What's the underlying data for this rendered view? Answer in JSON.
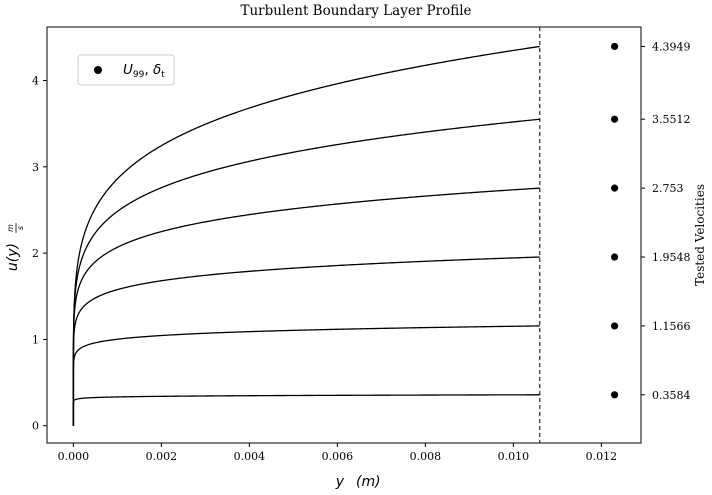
{
  "chart_data": {
    "type": "line",
    "title": "Turbulent Boundary Layer Profile",
    "xlabel": "y",
    "xlabel_unit": "(m)",
    "ylabel": "u(y)",
    "ylabel_unit_num": "m",
    "ylabel_unit_den": "s",
    "right_axis_label": "Tested Velocities",
    "xlim": [
      -0.0006,
      0.0129
    ],
    "ylim": [
      -0.2,
      4.62
    ],
    "x_ticks": [
      0.0,
      0.002,
      0.004,
      0.006,
      0.008,
      0.01,
      0.012
    ],
    "x_tick_labels": [
      "0.000",
      "0.002",
      "0.004",
      "0.006",
      "0.008",
      "0.010",
      "0.012"
    ],
    "y_ticks": [
      0,
      1,
      2,
      3,
      4
    ],
    "y_tick_labels": [
      "0",
      "1",
      "2",
      "3",
      "4"
    ],
    "right_ticks": [
      4.3949,
      3.5512,
      2.753,
      1.9548,
      1.1566,
      0.3584
    ],
    "right_tick_labels": [
      "4.3949",
      "3.5512",
      "2.753",
      "1.9548",
      "1.1566",
      "0.3584"
    ],
    "boundary_layer_thickness": 0.0106,
    "line_color": "#000000",
    "grid": false,
    "legend": {
      "location": "top-left",
      "marker": "filled-circle",
      "label_U": "U",
      "label_U_sub": "99",
      "label_sep": ", ",
      "label_delta": "δ",
      "label_delta_sub": "t"
    },
    "series": [
      {
        "u_inf": 4.3949,
        "shape": 1.0
      },
      {
        "u_inf": 3.5512,
        "shape": 1.2
      },
      {
        "u_inf": 2.753,
        "shape": 1.5
      },
      {
        "u_inf": 1.9548,
        "shape": 2.0
      },
      {
        "u_inf": 1.1566,
        "shape": 3.0
      },
      {
        "u_inf": 0.3584,
        "shape": 6.0
      }
    ],
    "markers": {
      "x": 0.0123,
      "y": [
        4.3949,
        3.5512,
        2.753,
        1.9548,
        1.1566,
        0.3584
      ]
    }
  }
}
